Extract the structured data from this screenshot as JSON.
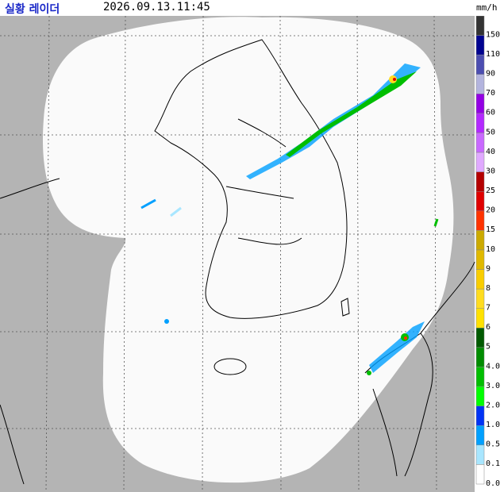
{
  "header": {
    "title": "실황 레이더",
    "time": "2026.09.13.11:45",
    "unit": "mm/h"
  },
  "legend": [
    {
      "label": "150",
      "color": "#333333"
    },
    {
      "label": "110",
      "color": "#000390"
    },
    {
      "label": "90",
      "color": "#4c4eb1"
    },
    {
      "label": "70",
      "color": "#b3b4de"
    },
    {
      "label": "60",
      "color": "#9300e4"
    },
    {
      "label": "50",
      "color": "#b329ff"
    },
    {
      "label": "40",
      "color": "#c969ff"
    },
    {
      "label": "30",
      "color": "#e0a9ff"
    },
    {
      "label": "25",
      "color": "#b40000"
    },
    {
      "label": "20",
      "color": "#e00000"
    },
    {
      "label": "15",
      "color": "#ff3300"
    },
    {
      "label": "10",
      "color": "#ccaa00"
    },
    {
      "label": "9",
      "color": "#e0b900"
    },
    {
      "label": "8",
      "color": "#f9cd00"
    },
    {
      "label": "7",
      "color": "#ffdc1f"
    },
    {
      "label": "6",
      "color": "#ffe100"
    },
    {
      "label": "5",
      "color": "#005a00"
    },
    {
      "label": "4.0",
      "color": "#008c00"
    },
    {
      "label": "3.0",
      "color": "#00be00"
    },
    {
      "label": "2.0",
      "color": "#00ff00"
    },
    {
      "label": "1.0",
      "color": "#0033f5"
    },
    {
      "label": "0.5",
      "color": "#00a0ff"
    },
    {
      "label": "0.1",
      "color": "#a8e6ff"
    },
    {
      "label": "0.0",
      "color": "#ffffff"
    }
  ]
}
